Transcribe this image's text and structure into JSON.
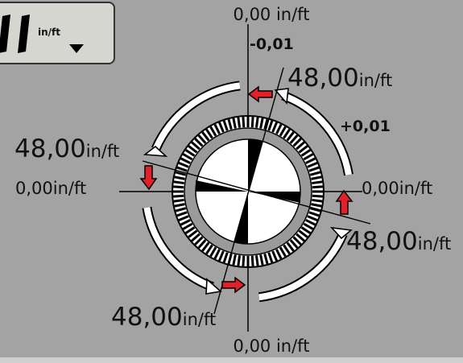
{
  "display": {
    "digits": "11",
    "unit": "in/ft"
  },
  "labels": {
    "top": "0,00 in/ft",
    "bottom": "0,00 in/ft",
    "left": "0,00in/ft",
    "right": "0,00in/ft",
    "neg": "-0,01",
    "pos": "+0,01",
    "upper_right_value": "48,00",
    "upper_right_unit": "in/ft",
    "upper_left_value": "48,00",
    "upper_left_unit": "in/ft",
    "lower_right_value": "48,00",
    "lower_right_unit": "in/ft",
    "lower_left_value": "48,00",
    "lower_left_unit": "in/ft"
  },
  "colors": {
    "background": "#a3a3a3",
    "arrow_red": "#e3202a",
    "ring_white": "#ffffff",
    "ring_gray": "#9a9a9a",
    "ink": "#000000"
  },
  "icons": {
    "dropdown": "triangle-down-icon",
    "direction_arrows": "red-arrow-icon"
  }
}
